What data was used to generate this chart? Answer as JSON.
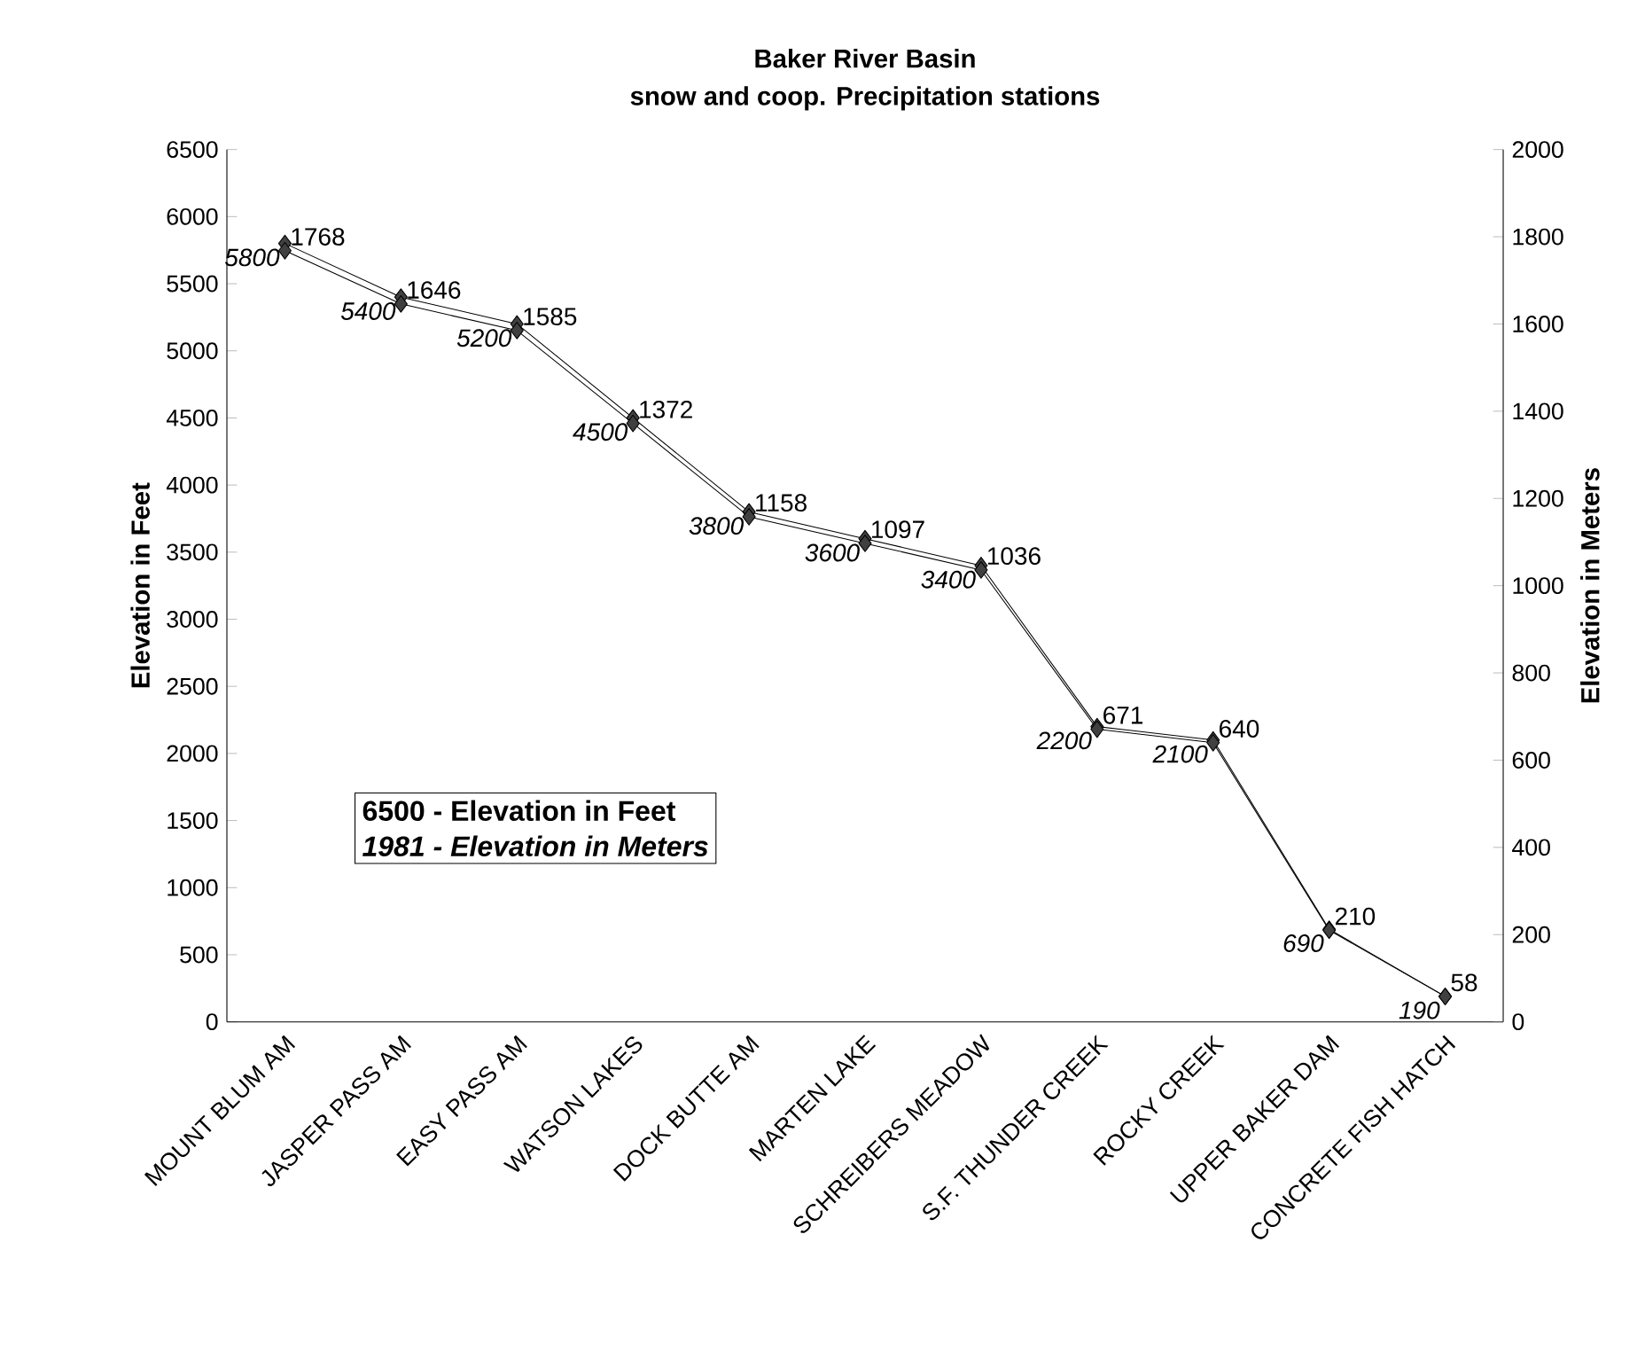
{
  "chart_data": {
    "type": "line",
    "title": "Baker River Basin",
    "subtitle": "snow and coop. Precipitation stations",
    "ylabel": "Elevation in Feet",
    "y2label": "Elevation in Meters",
    "categories": [
      "MOUNT BLUM AM",
      "JASPER PASS AM",
      "EASY PASS AM",
      "WATSON LAKES",
      "DOCK BUTTE AM",
      "MARTEN LAKE",
      "SCHREIBERS MEADOW",
      "S.F. THUNDER CREEK",
      "ROCKY CREEK",
      "UPPER BAKER DAM",
      "CONCRETE FISH HATCH"
    ],
    "series": [
      {
        "color": "#404040",
        "values": [
          5800,
          5400,
          5200,
          4500,
          3800,
          3600,
          3400,
          2200,
          2100,
          690,
          190
        ]
      },
      {
        "color": "#404040",
        "axis": "y2",
        "values": [
          1768,
          1646,
          1585,
          1372,
          1158,
          1097,
          1036,
          671,
          640,
          210,
          58
        ]
      }
    ],
    "ylim": [
      0,
      6500
    ],
    "yticks": [
      0,
      500,
      1000,
      1500,
      2000,
      2500,
      3000,
      3500,
      4000,
      4500,
      5000,
      5500,
      6000,
      6500
    ],
    "y2lim": [
      0,
      2000
    ],
    "y2ticks": [
      0,
      200,
      400,
      600,
      800,
      1000,
      1200,
      1400,
      1600,
      1800,
      2000
    ],
    "data_labels": true,
    "marker": "diamond",
    "line_style": "solid",
    "annotations": [
      "6500 - Elevation in Feet",
      "1981 - Elevation in Meters"
    ]
  }
}
